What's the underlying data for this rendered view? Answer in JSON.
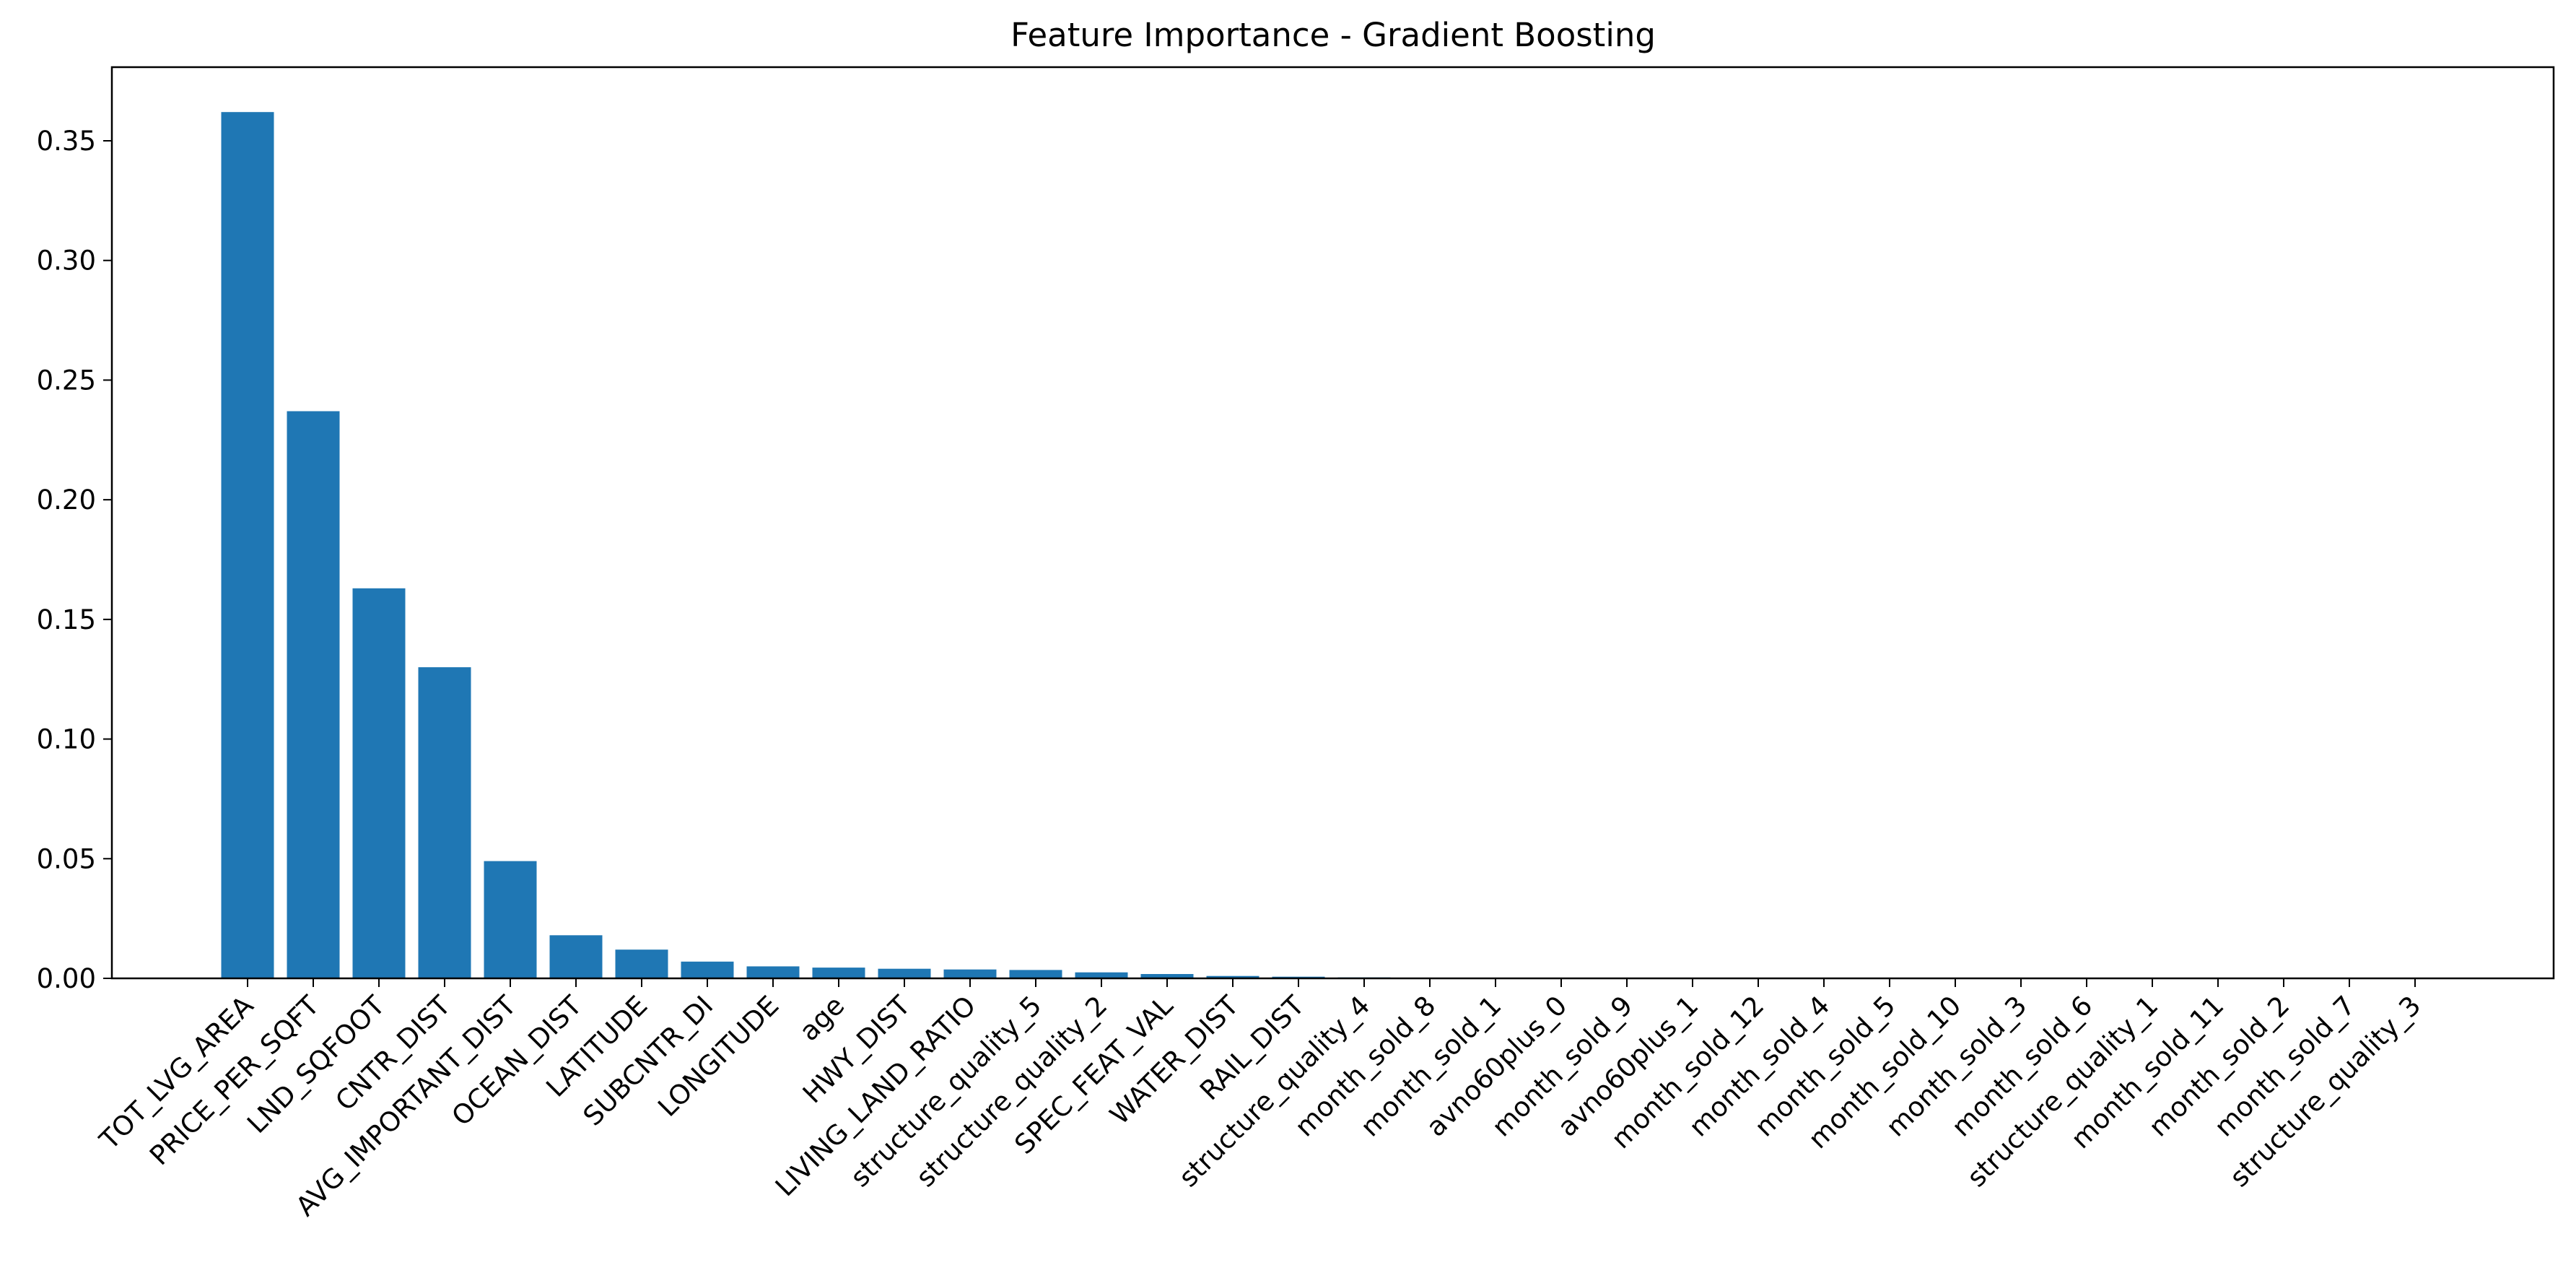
{
  "chart_data": {
    "type": "bar",
    "title": "Feature Importance - Gradient Boosting",
    "xlabel": "",
    "ylabel": "",
    "ylim": [
      0,
      0.38
    ],
    "yticks": [
      "0.00",
      "0.05",
      "0.10",
      "0.15",
      "0.20",
      "0.25",
      "0.30",
      "0.35"
    ],
    "grid": false,
    "legend": "none",
    "bar_color": "#1f77b4",
    "categories": [
      "TOT_LVG_AREA",
      "PRICE_PER_SQFT",
      "LND_SQFOOT",
      "CNTR_DIST",
      "AVG_IMPORTANT_DIST",
      "OCEAN_DIST",
      "LATITUDE",
      "SUBCNTR_DI",
      "LONGITUDE",
      "age",
      "HWY_DIST",
      "LIVING_LAND_RATIO",
      "structure_quality_5",
      "structure_quality_2",
      "SPEC_FEAT_VAL",
      "WATER_DIST",
      "RAIL_DIST",
      "structure_quality_4",
      "month_sold_8",
      "month_sold_1",
      "avno60plus_0",
      "month_sold_9",
      "avno60plus_1",
      "month_sold_12",
      "month_sold_4",
      "month_sold_5",
      "month_sold_10",
      "month_sold_3",
      "month_sold_6",
      "structure_quality_1",
      "month_sold_11",
      "month_sold_2",
      "month_sold_7",
      "structure_quality_3"
    ],
    "values": [
      0.362,
      0.237,
      0.163,
      0.13,
      0.049,
      0.018,
      0.012,
      0.007,
      0.005,
      0.0045,
      0.004,
      0.0037,
      0.0035,
      0.0025,
      0.0018,
      0.001,
      0.0007,
      0.0004,
      0.0002,
      0.0001,
      0.0001,
      0.0001,
      0.0001,
      0.0001,
      5e-05,
      5e-05,
      5e-05,
      5e-05,
      3e-05,
      3e-05,
      2e-05,
      2e-05,
      1e-05,
      0.0
    ]
  }
}
